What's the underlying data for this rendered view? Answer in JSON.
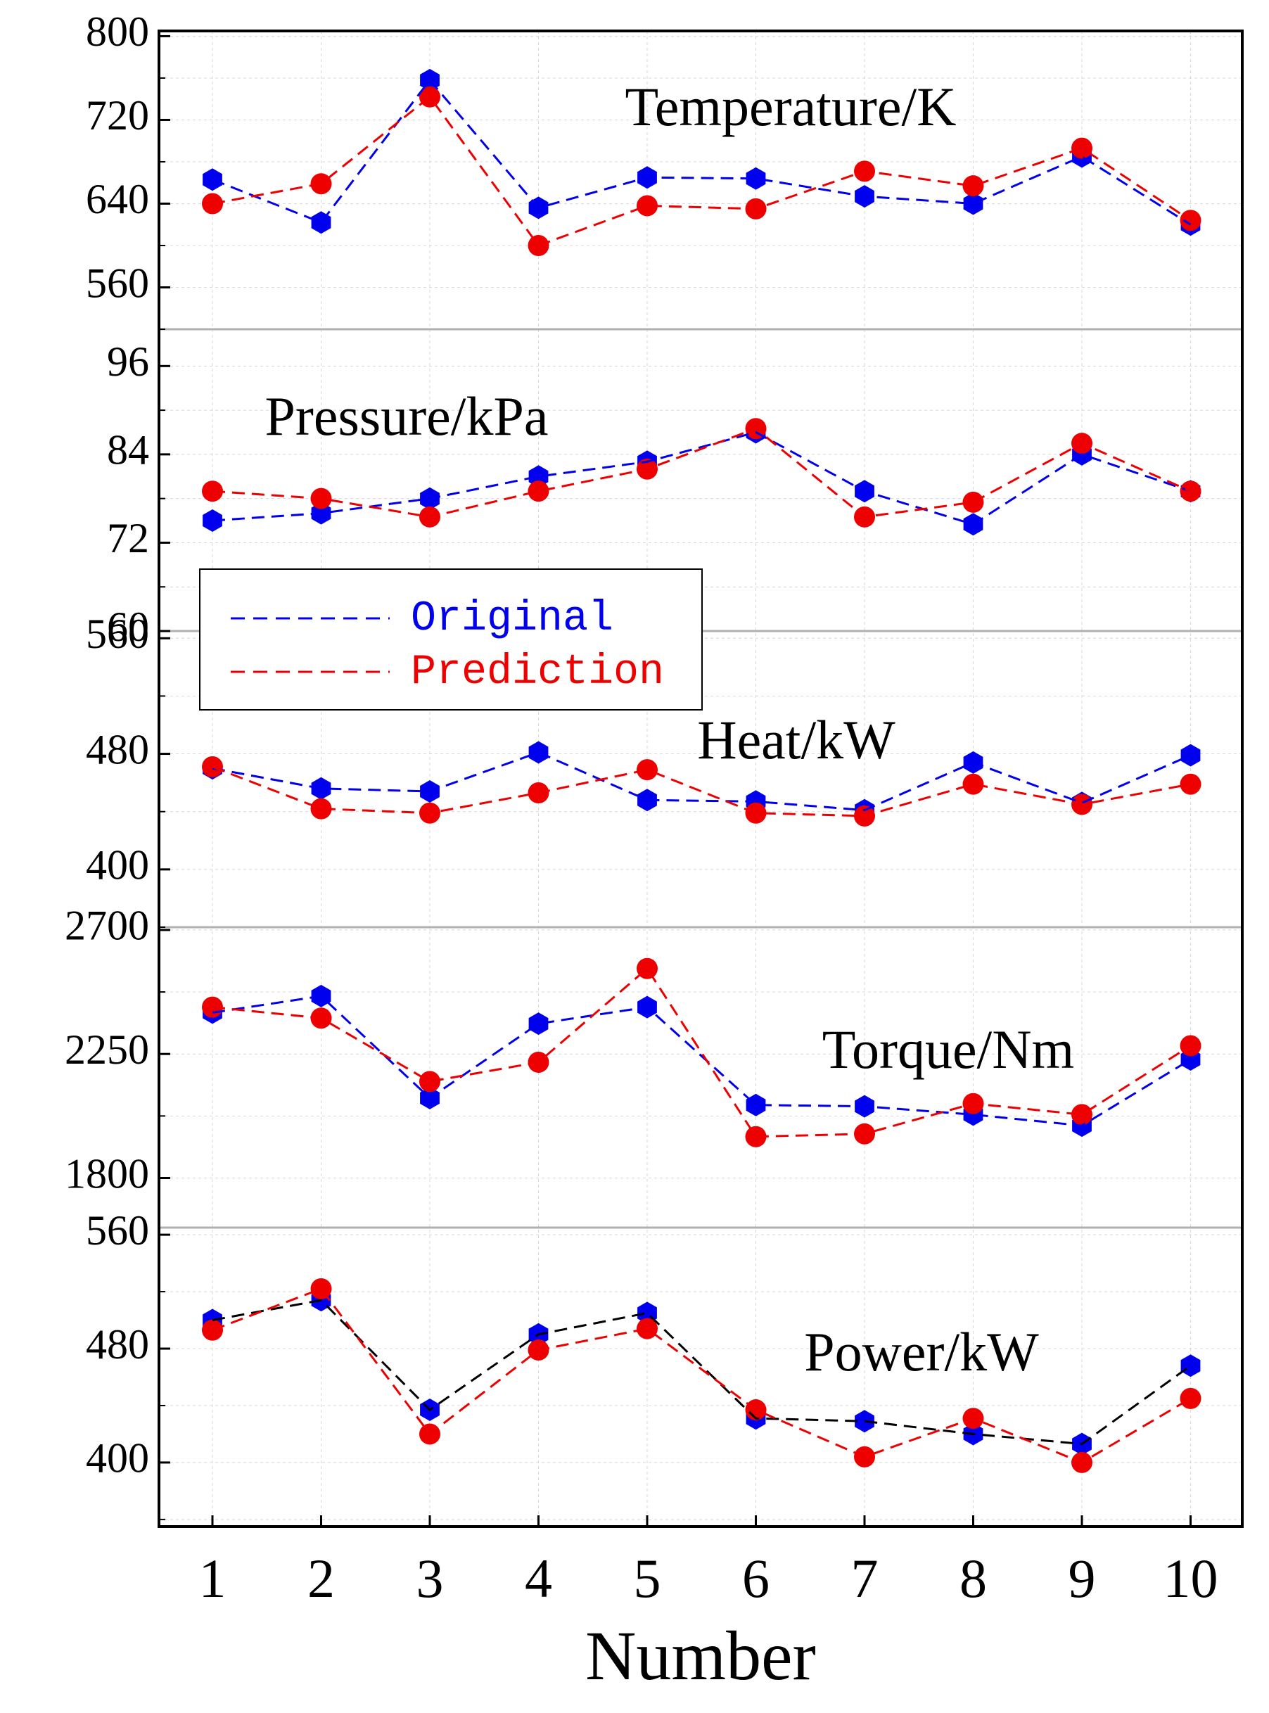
{
  "chart_data": {
    "type": "line",
    "xlabel": "Number",
    "categories": [
      "1",
      "2",
      "3",
      "4",
      "5",
      "6",
      "7",
      "8",
      "9",
      "10"
    ],
    "legend": {
      "placement": "left-middle",
      "entries": [
        {
          "name": "Original",
          "color": "#0000ee"
        },
        {
          "name": "Prediction",
          "color": "#ee0000"
        }
      ]
    },
    "colors": {
      "original": "#0000ee",
      "prediction": "#ee0000",
      "original_power_line": "#000000",
      "separator": "#b0b0b0",
      "grid": "#d8d8d8"
    },
    "panels": [
      {
        "title": "Temperature/K",
        "ylim": [
          520,
          805
        ],
        "yticks": [
          560,
          640,
          720,
          800
        ],
        "series": [
          {
            "name": "Original",
            "values": [
              663,
              622,
              758,
              636,
              665,
              664,
              647,
              640,
              685,
              620
            ]
          },
          {
            "name": "Prediction",
            "values": [
              640,
              659,
              742,
              600,
              638,
              635,
              671,
              657,
              693,
              624
            ]
          }
        ]
      },
      {
        "title": "Pressure/kPa",
        "ylim": [
          60,
          101
        ],
        "yticks": [
          60,
          72,
          84,
          96
        ],
        "series": [
          {
            "name": "Original",
            "values": [
              75,
              76,
              78,
              81,
              83,
              87,
              79,
              74.5,
              84,
              79
            ]
          },
          {
            "name": "Prediction",
            "values": [
              79,
              78,
              75.5,
              79,
              82,
              87.5,
              75.5,
              77.5,
              85.5,
              79
            ]
          }
        ]
      },
      {
        "title": "Heat/kW",
        "ylim": [
          360,
          565
        ],
        "yticks": [
          400,
          480,
          560
        ],
        "series": [
          {
            "name": "Original",
            "values": [
              470,
              456,
              454,
              481,
              448,
              447,
              441,
              474,
              446,
              479
            ]
          },
          {
            "name": "Prediction",
            "values": [
              471,
              442,
              439,
              453,
              469,
              439,
              437,
              459,
              445,
              459
            ]
          }
        ]
      },
      {
        "title": "Torque/Nm",
        "ylim": [
          1620,
          2710
        ],
        "yticks": [
          1800,
          2250,
          2700
        ],
        "series": [
          {
            "name": "Original",
            "values": [
              2400,
              2460,
              2090,
              2360,
              2420,
              2065,
              2060,
              2030,
              1990,
              2230
            ]
          },
          {
            "name": "Prediction",
            "values": [
              2420,
              2380,
              2150,
              2220,
              2560,
              1950,
              1960,
              2070,
              2030,
              2280
            ]
          }
        ]
      },
      {
        "title": "Power/kW",
        "ylim": [
          355,
          565
        ],
        "yticks": [
          400,
          480,
          560
        ],
        "series": [
          {
            "name": "Original",
            "values": [
              500,
              514,
              437,
              490,
              505,
              431,
              429,
              420,
              413,
              468
            ]
          },
          {
            "name": "Prediction",
            "values": [
              493,
              522,
              420,
              479,
              494,
              437,
              404,
              431,
              400,
              445
            ]
          }
        ]
      }
    ]
  }
}
